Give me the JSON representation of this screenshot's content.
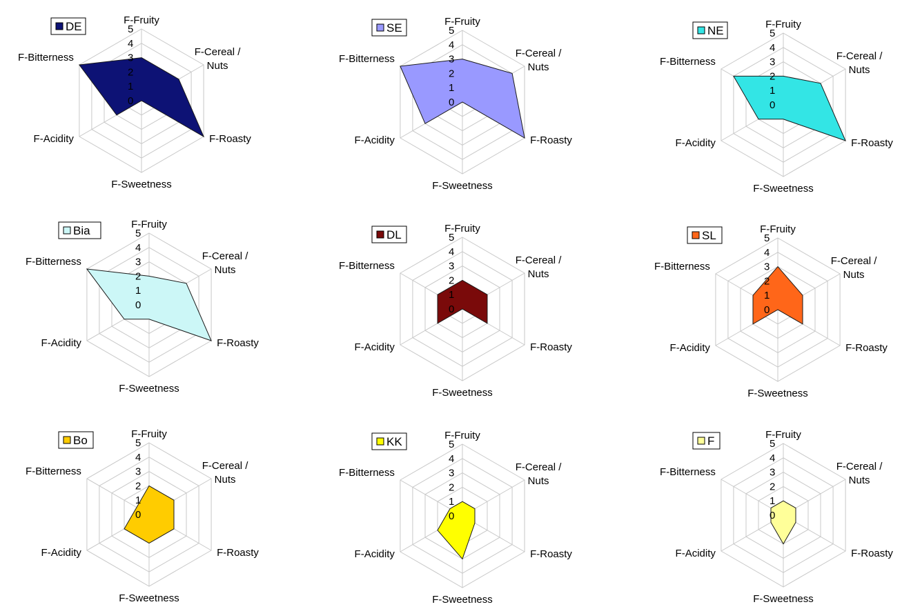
{
  "chart_data": [
    {
      "type": "radar",
      "legend": "DE",
      "color": "#0d1275",
      "axes": [
        "F-Fruity",
        "F-Cereal / Nuts",
        "F-Roasty",
        "F-Sweetness",
        "F-Acidity",
        "F-Bitterness"
      ],
      "ticks": [
        "0",
        "1",
        "2",
        "3",
        "4",
        "5"
      ],
      "rlim": [
        0,
        5
      ],
      "values": [
        3,
        3,
        5,
        0,
        2,
        5
      ]
    },
    {
      "type": "radar",
      "legend": "SE",
      "color": "#9999ff",
      "axes": [
        "F-Fruity",
        "F-Cereal / Nuts",
        "F-Roasty",
        "F-Sweetness",
        "F-Acidity",
        "F-Bitterness"
      ],
      "ticks": [
        "0",
        "1",
        "2",
        "3",
        "4",
        "5"
      ],
      "rlim": [
        0,
        5
      ],
      "values": [
        3,
        4,
        5,
        0,
        3,
        5
      ]
    },
    {
      "type": "radar",
      "legend": "NE",
      "color": "#33e5e5",
      "axes": [
        "F-Fruity",
        "F-Cereal / Nuts",
        "F-Roasty",
        "F-Sweetness",
        "F-Acidity",
        "F-Bitterness"
      ],
      "ticks": [
        "0",
        "1",
        "2",
        "3",
        "4",
        "5"
      ],
      "rlim": [
        0,
        5
      ],
      "values": [
        2,
        3,
        5,
        1,
        2,
        4
      ]
    },
    {
      "type": "radar",
      "legend": "Bia",
      "color": "#ccf7f7",
      "axes": [
        "F-Fruity",
        "F-Cereal / Nuts",
        "F-Roasty",
        "F-Sweetness",
        "F-Acidity",
        "F-Bitterness"
      ],
      "ticks": [
        "0",
        "1",
        "2",
        "3",
        "4",
        "5"
      ],
      "rlim": [
        0,
        5
      ],
      "values": [
        2,
        3,
        5,
        1,
        2,
        5
      ]
    },
    {
      "type": "radar",
      "legend": "DL",
      "color": "#7a0a0a",
      "axes": [
        "F-Fruity",
        "F-Cereal / Nuts",
        "F-Roasty",
        "F-Sweetness",
        "F-Acidity",
        "F-Bitterness"
      ],
      "ticks": [
        "0",
        "1",
        "2",
        "3",
        "4",
        "5"
      ],
      "rlim": [
        0,
        5
      ],
      "values": [
        2,
        2,
        2,
        0,
        2,
        2
      ]
    },
    {
      "type": "radar",
      "legend": "SL",
      "color": "#ff6619",
      "axes": [
        "F-Fruity",
        "F-Cereal / Nuts",
        "F-Roasty",
        "F-Sweetness",
        "F-Acidity",
        "F-Bitterness"
      ],
      "ticks": [
        "0",
        "1",
        "2",
        "3",
        "4",
        "5"
      ],
      "rlim": [
        0,
        5
      ],
      "values": [
        3,
        2,
        2,
        0,
        2,
        2
      ]
    },
    {
      "type": "radar",
      "legend": "Bo",
      "color": "#ffcc00",
      "axes": [
        "F-Fruity",
        "F-Cereal / Nuts",
        "F-Roasty",
        "F-Sweetness",
        "F-Acidity",
        "F-Bitterness"
      ],
      "ticks": [
        "0",
        "1",
        "2",
        "3",
        "4",
        "5"
      ],
      "rlim": [
        0,
        5
      ],
      "values": [
        2,
        2,
        2,
        2,
        2,
        1
      ]
    },
    {
      "type": "radar",
      "legend": "KK",
      "color": "#ffff00",
      "axes": [
        "F-Fruity",
        "F-Cereal / Nuts",
        "F-Roasty",
        "F-Sweetness",
        "F-Acidity",
        "F-Bitterness"
      ],
      "ticks": [
        "0",
        "1",
        "2",
        "3",
        "4",
        "5"
      ],
      "rlim": [
        0,
        5
      ],
      "values": [
        1,
        1,
        1,
        3,
        2,
        1
      ]
    },
    {
      "type": "radar",
      "legend": "F",
      "color": "#ffff99",
      "axes": [
        "F-Fruity",
        "F-Cereal / Nuts",
        "F-Roasty",
        "F-Sweetness",
        "F-Acidity",
        "F-Bitterness"
      ],
      "ticks": [
        "0",
        "1",
        "2",
        "3",
        "4",
        "5"
      ],
      "rlim": [
        0,
        5
      ],
      "values": [
        1,
        1,
        1,
        2,
        1,
        1
      ]
    }
  ]
}
